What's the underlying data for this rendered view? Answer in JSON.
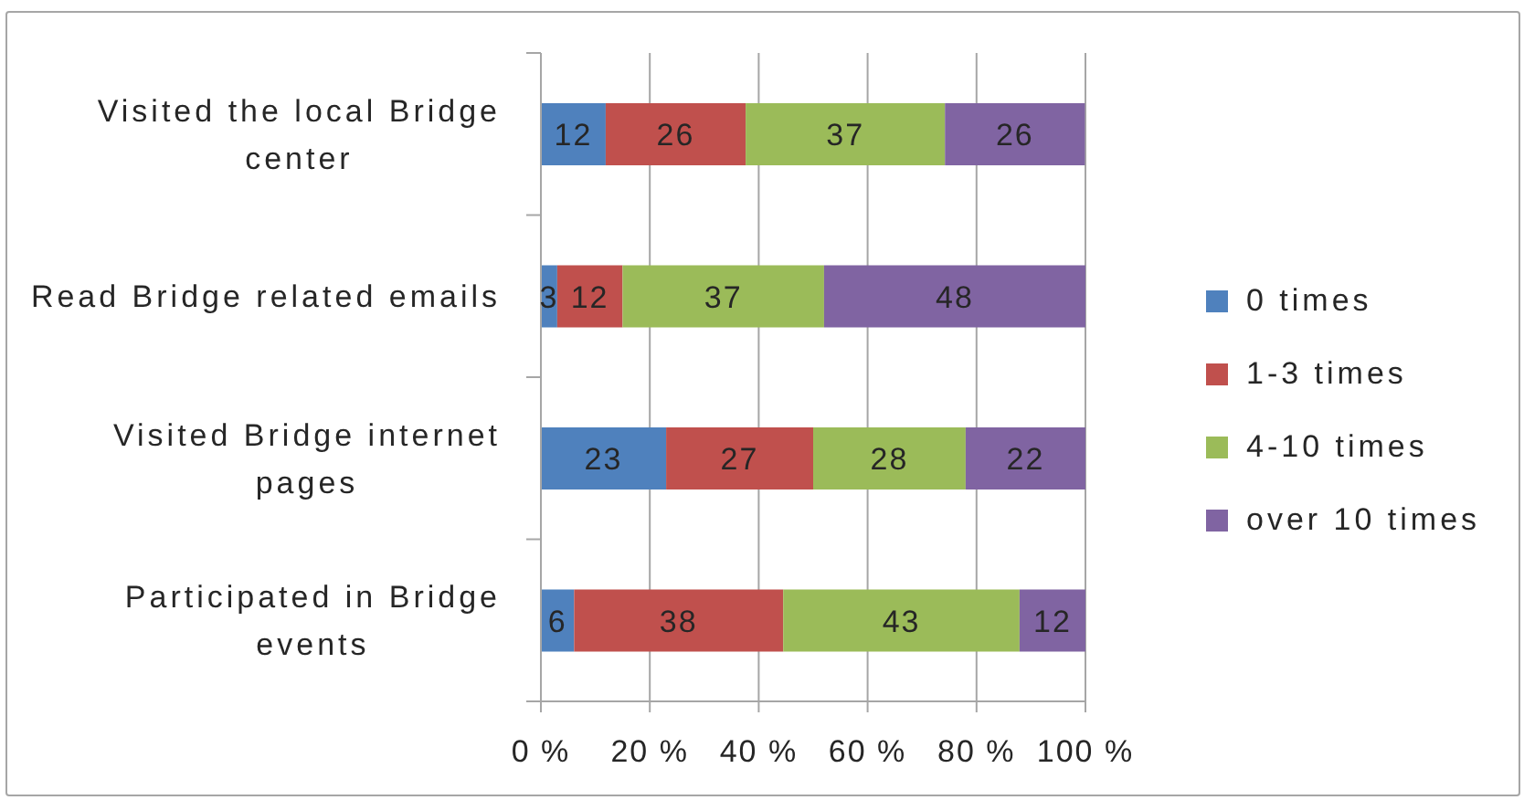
{
  "chart_data": {
    "type": "bar",
    "orientation": "horizontal",
    "stacked": true,
    "categories": [
      "Visited the local Bridge center",
      "Read Bridge related emails",
      "Visited Bridge internet pages",
      "Participated in Bridge events"
    ],
    "series": [
      {
        "name": "0 times",
        "color": "#4f81bd",
        "values": [
          11.9,
          3,
          23,
          6.1
        ],
        "value_labels": [
          "12",
          "3",
          "23",
          "6"
        ]
      },
      {
        "name": "1-3 times",
        "color": "#c0504d",
        "values": [
          25.7,
          12,
          27,
          38.4
        ],
        "value_labels": [
          "26",
          "12",
          "27",
          "38"
        ]
      },
      {
        "name": "4-10 times",
        "color": "#9bbb59",
        "values": [
          36.6,
          37,
          28,
          43.4
        ],
        "value_labels": [
          "37",
          "37",
          "28",
          "43"
        ]
      },
      {
        "name": "over 10 times",
        "color": "#8064a2",
        "values": [
          25.7,
          48,
          22,
          12.1
        ],
        "value_labels": [
          "26",
          "48",
          "22",
          "12"
        ]
      }
    ],
    "xlim": [
      0,
      100
    ],
    "xticks": [
      {
        "value": 0,
        "label": "0 %"
      },
      {
        "value": 20,
        "label": "20 %"
      },
      {
        "value": 40,
        "label": "40 %"
      },
      {
        "value": 60,
        "label": "60 %"
      },
      {
        "value": 80,
        "label": "80 %"
      },
      {
        "value": 100,
        "label": "100 %"
      }
    ],
    "grid": "x",
    "legend": "right"
  }
}
